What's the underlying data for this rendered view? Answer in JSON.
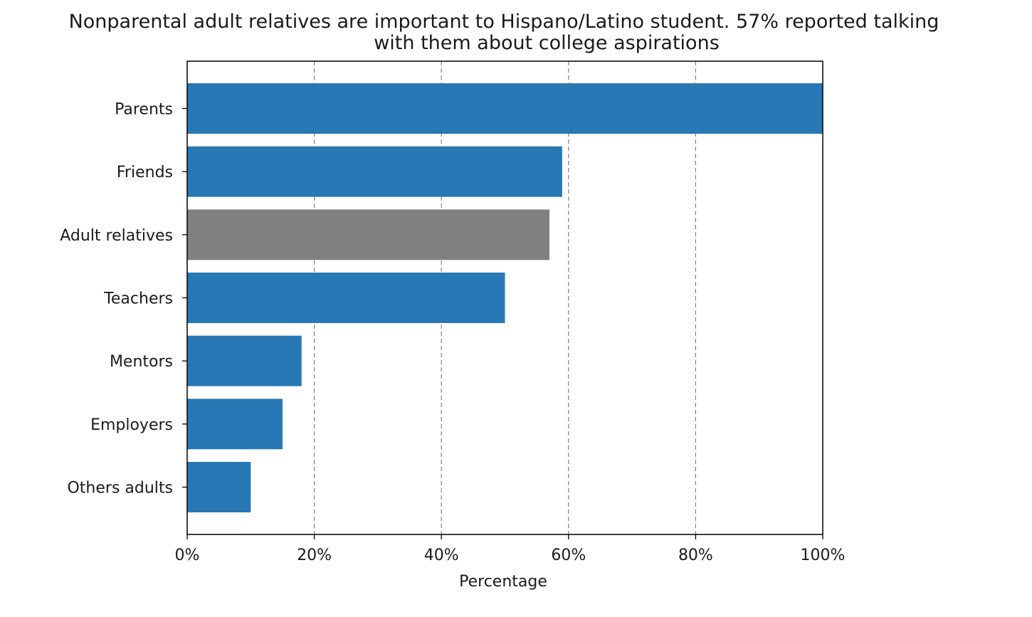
{
  "chart_data": {
    "type": "bar",
    "orientation": "horizontal",
    "title_lines": [
      "Nonparental adult relatives are important to Hispano/Latino student. 57% reported talking",
      "with them about college aspirations"
    ],
    "xlabel": "Percentage",
    "ylabel": "",
    "xlim": [
      0,
      100
    ],
    "xticks": [
      0,
      20,
      40,
      60,
      80,
      100
    ],
    "xtick_labels": [
      "0%",
      "20%",
      "40%",
      "60%",
      "80%",
      "100%"
    ],
    "grid": "vertical dashed gridlines on major x ticks",
    "categories": [
      "Parents",
      "Friends",
      "Adult relatives",
      "Teachers",
      "Mentors",
      "Employers",
      "Others adults"
    ],
    "values": [
      100,
      59,
      57,
      50,
      18,
      15,
      10
    ],
    "colors": {
      "default": "#2878b5",
      "highlight": "#808080"
    },
    "highlight_category": "Adult relatives"
  }
}
